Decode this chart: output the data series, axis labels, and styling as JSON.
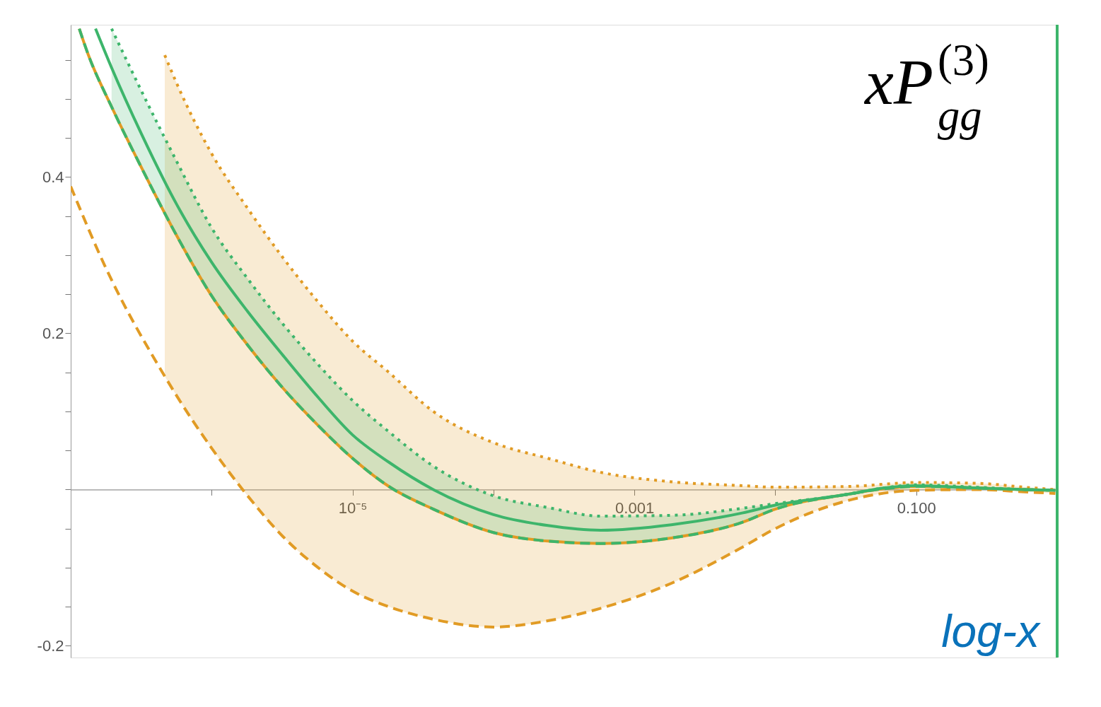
{
  "chart_data": {
    "type": "line",
    "annotations": [
      "xP$_{gg}$$^{(3)}$",
      "log-x"
    ],
    "log": "x",
    "xlim": [
      1e-07,
      1
    ],
    "ylim": [
      -0.215,
      0.595
    ],
    "xticks": [
      {
        "value": 1e-06,
        "label": null
      },
      {
        "value": 1e-05,
        "label": "10⁻⁵"
      },
      {
        "value": 0.0001,
        "label": null
      },
      {
        "value": 0.001,
        "label": "0.001"
      },
      {
        "value": 0.01,
        "label": null
      },
      {
        "value": 0.1,
        "label": "0.100"
      }
    ],
    "yticks": [
      -0.2,
      {
        "value": -0.15,
        "label": null
      },
      {
        "value": -0.1,
        "label": null
      },
      {
        "value": -0.05,
        "label": null
      },
      {
        "value": 0,
        "label": null
      },
      {
        "value": 0.05,
        "label": null
      },
      {
        "value": 0.1,
        "label": null
      },
      {
        "value": 0.15,
        "label": null
      },
      0.2,
      {
        "value": 0.25,
        "label": null
      },
      {
        "value": 0.3,
        "label": null
      },
      {
        "value": 0.35,
        "label": null
      },
      0.4,
      {
        "value": 0.45,
        "label": null
      },
      {
        "value": 0.5,
        "label": null
      },
      {
        "value": 0.55,
        "label": null
      }
    ],
    "ref_lines": [
      {
        "axis": "x",
        "value": 1,
        "color": "#3db56b",
        "line_style": "solid"
      }
    ],
    "series": [
      {
        "color": "#e19b24",
        "line_style": "dotted",
        "x": [
          4.65e-07,
          5.65e-07,
          1e-06,
          1.8e-06,
          3.2e-06,
          5.7e-06,
          1e-05,
          1.81e-05,
          3.74e-05,
          0.0001,
          0.000243,
          0.000577,
          0.00183,
          0.00581,
          0.01,
          0.0329,
          0.1,
          0.272,
          0.589,
          0.97
        ],
        "values": [
          0.556,
          0.52,
          0.43,
          0.36,
          0.297,
          0.24,
          0.19,
          0.15,
          0.1,
          0.06,
          0.04,
          0.022,
          0.01,
          0.005,
          0.003,
          0.004,
          0.009,
          0.008,
          0.003,
          0
        ],
        "lower": [
          0.145,
          0.12,
          0.053,
          -0.008,
          -0.06,
          -0.1,
          -0.13,
          -0.15,
          -0.166,
          -0.176,
          -0.168,
          -0.152,
          -0.12,
          -0.074,
          -0.05,
          -0.014,
          -0.001,
          0,
          -0.003,
          -0.005
        ],
        "upper": [
          0.556,
          0.52,
          0.43,
          0.36,
          0.297,
          0.24,
          0.19,
          0.15,
          0.1,
          0.06,
          0.04,
          0.022,
          0.01,
          0.005,
          0.003,
          0.004,
          0.009,
          0.008,
          0.003,
          0
        ]
      },
      {
        "color": "#e19b24",
        "line_style": "dashed",
        "x": [
          1e-07,
          1.74e-07,
          4.65e-07,
          5.65e-07,
          1e-06,
          1.8e-06,
          3.2e-06,
          5.7e-06,
          1e-05,
          1.81e-05,
          3.74e-05,
          0.0001,
          0.000243,
          0.000577,
          0.00183,
          0.00581,
          0.01,
          0.0329,
          0.1,
          0.272,
          0.589,
          0.97
        ],
        "values": [
          0.388,
          0.287,
          0.145,
          0.12,
          0.053,
          -0.008,
          -0.06,
          -0.1,
          -0.13,
          -0.15,
          -0.166,
          -0.176,
          -0.168,
          -0.152,
          -0.12,
          -0.074,
          -0.05,
          -0.014,
          -0.001,
          0,
          -0.003,
          -0.005
        ]
      },
      {
        "color": "#e19b24",
        "line_style": "solid",
        "x": [
          1.15e-07,
          1.33e-07,
          1.95e-07,
          3.18e-07,
          5.65e-07,
          1e-06,
          1.8e-06,
          3.2e-06,
          5.7e-06,
          1e-05,
          1.81e-05,
          3.74e-05,
          0.0001,
          0.000243,
          0.000577,
          0.00183,
          0.00581,
          0.01,
          0.0329,
          0.0585,
          0.1,
          0.272,
          0.589,
          0.97
        ],
        "values": [
          0.59,
          0.557,
          0.49,
          0.412,
          0.325,
          0.248,
          0.185,
          0.13,
          0.082,
          0.04,
          0.004,
          -0.025,
          -0.055,
          -0.066,
          -0.069,
          -0.062,
          -0.042,
          -0.025,
          -0.006,
          0.001,
          0.004,
          0.002,
          0,
          -0.001
        ]
      },
      {
        "color": "#3db56b",
        "line_style": "solid",
        "x": [
          1.5e-07,
          1.95e-07,
          3.18e-07,
          5.65e-07,
          1e-06,
          1.8e-06,
          3.2e-06,
          5.7e-06,
          1e-05,
          1.81e-05,
          3.74e-05,
          0.0001,
          0.000243,
          0.000577,
          0.00183,
          0.00581,
          0.01,
          0.0329,
          0.0585,
          0.1,
          0.272,
          0.589,
          0.97
        ],
        "values": [
          0.59,
          0.54,
          0.455,
          0.365,
          0.291,
          0.228,
          0.172,
          0.118,
          0.07,
          0.035,
          0,
          -0.032,
          -0.046,
          -0.052,
          -0.045,
          -0.03,
          -0.02,
          -0.006,
          0.002,
          0.005,
          0.002,
          0,
          -0.001
        ],
        "lower": [
          null,
          0.49,
          0.412,
          0.325,
          0.248,
          0.185,
          0.13,
          0.082,
          0.04,
          0.004,
          -0.025,
          -0.055,
          -0.066,
          -0.069,
          -0.062,
          -0.042,
          -0.025,
          -0.006,
          0.001,
          0.004,
          0.002,
          0,
          -0.001
        ],
        "upper": [
          null,
          0.59,
          0.51,
          0.42,
          0.335,
          0.27,
          0.212,
          0.16,
          0.114,
          0.074,
          0.03,
          -0.008,
          -0.023,
          -0.034,
          -0.033,
          -0.024,
          -0.018,
          -0.006,
          0.002,
          0.006,
          0.003,
          0,
          -0.001
        ]
      },
      {
        "color": "#3db56b",
        "line_style": "dashed",
        "x": [
          1.15e-07,
          1.33e-07,
          1.95e-07,
          3.18e-07,
          5.65e-07,
          1e-06,
          1.8e-06,
          3.2e-06,
          5.7e-06,
          1e-05,
          1.81e-05,
          3.74e-05,
          0.0001,
          0.000243,
          0.000577,
          0.00183,
          0.00581,
          0.01,
          0.0329,
          0.0585,
          0.1,
          0.272,
          0.589,
          0.97
        ],
        "values": [
          0.59,
          0.557,
          0.49,
          0.412,
          0.325,
          0.248,
          0.185,
          0.13,
          0.082,
          0.04,
          0.004,
          -0.025,
          -0.055,
          -0.066,
          -0.069,
          -0.062,
          -0.042,
          -0.025,
          -0.006,
          0.001,
          0.004,
          0.002,
          0,
          -0.001
        ]
      },
      {
        "color": "#3db56b",
        "line_style": "dotted",
        "x": [
          1.95e-07,
          3.18e-07,
          5.65e-07,
          1e-06,
          1.8e-06,
          3.2e-06,
          5.7e-06,
          1e-05,
          1.81e-05,
          3.74e-05,
          0.0001,
          0.000243,
          0.000577,
          0.00183,
          0.00581,
          0.01,
          0.0329,
          0.0585,
          0.1,
          0.272,
          0.589,
          0.97
        ],
        "values": [
          0.59,
          0.51,
          0.42,
          0.335,
          0.27,
          0.212,
          0.16,
          0.114,
          0.074,
          0.03,
          -0.008,
          -0.023,
          -0.034,
          -0.033,
          -0.024,
          -0.018,
          -0.006,
          0.002,
          0.006,
          0.003,
          0,
          -0.001
        ]
      }
    ]
  }
}
